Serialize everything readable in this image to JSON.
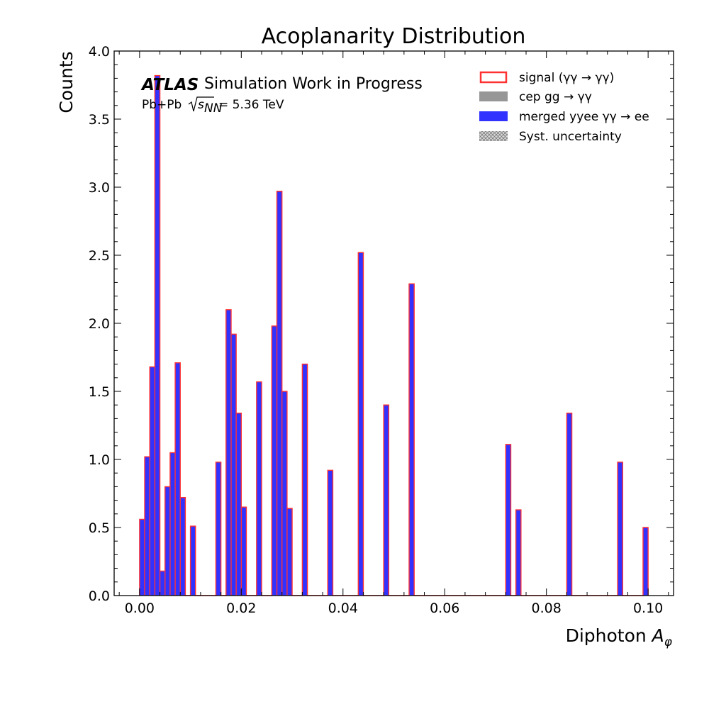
{
  "chart_data": {
    "type": "bar",
    "title": "Acoplanarity Distribution",
    "xlabel": "Diphoton",
    "xlabel_symbol": "A",
    "xlabel_subscript": "φ",
    "ylabel": "Counts",
    "xlim": [
      -0.005,
      0.105
    ],
    "ylim": [
      0.0,
      4.0
    ],
    "bin_width": 0.001,
    "x_ticks": [
      "0.00",
      "0.02",
      "0.04",
      "0.06",
      "0.08",
      "0.10"
    ],
    "x_tick_values": [
      0.0,
      0.02,
      0.04,
      0.06,
      0.08,
      0.1
    ],
    "y_ticks": [
      "0.0",
      "0.5",
      "1.0",
      "1.5",
      "2.0",
      "2.5",
      "3.0",
      "3.5",
      "4.0"
    ],
    "y_tick_values": [
      0.0,
      0.5,
      1.0,
      1.5,
      2.0,
      2.5,
      3.0,
      3.5,
      4.0
    ],
    "grid": false,
    "legend_position": "top-right",
    "bin_lows": [
      0.0,
      0.001,
      0.002,
      0.003,
      0.004,
      0.005,
      0.006,
      0.007,
      0.008,
      0.01,
      0.015,
      0.017,
      0.018,
      0.019,
      0.02,
      0.023,
      0.026,
      0.027,
      0.028,
      0.029,
      0.032,
      0.037,
      0.043,
      0.048,
      0.053,
      0.072,
      0.074,
      0.084,
      0.094,
      0.099
    ],
    "series": [
      {
        "name": "merged yyee",
        "color": "#3232ff",
        "edge_color": "#ff3232",
        "values": [
          0.56,
          1.02,
          1.68,
          3.82,
          0.18,
          0.8,
          1.05,
          1.71,
          0.72,
          0.51,
          0.98,
          2.1,
          1.92,
          1.34,
          0.65,
          1.57,
          1.98,
          2.97,
          1.5,
          0.64,
          1.7,
          0.92,
          2.52,
          1.4,
          2.29,
          1.11,
          0.63,
          1.34,
          0.98,
          0.5
        ]
      }
    ]
  },
  "annotations": {
    "experiment": "ATLAS",
    "status": "Simulation Work in Progress",
    "collision_system": "Pb+Pb",
    "energy_value": "= 5.36 TeV"
  },
  "legend": {
    "entries": [
      {
        "label": "signal (γγ → γγ)",
        "style": "outline",
        "color": "#ff3232"
      },
      {
        "label": "cep gg → γγ",
        "style": "filled",
        "color": "#969696"
      },
      {
        "label": "merged yyee γγ → ee",
        "style": "filled",
        "color": "#3232ff"
      },
      {
        "label": "Syst. uncertainty",
        "style": "hatched",
        "color": "#8c8c8c"
      }
    ]
  }
}
